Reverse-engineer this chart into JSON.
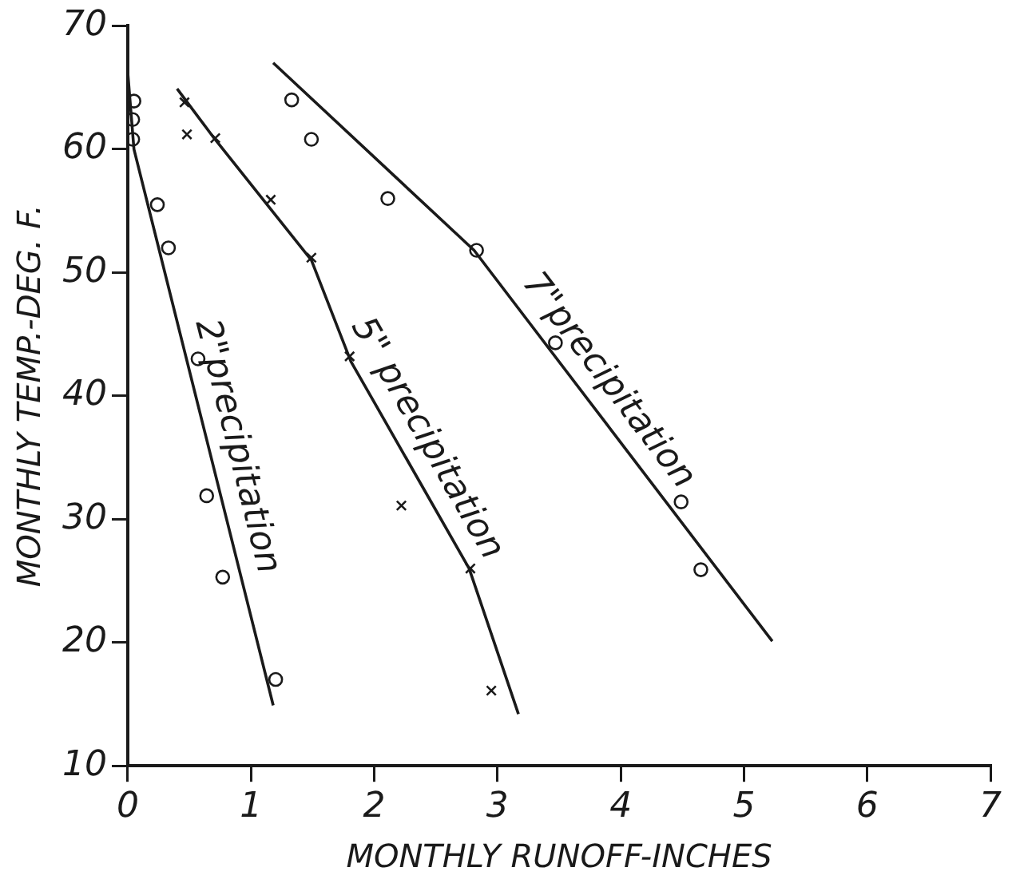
{
  "chart_data": {
    "type": "scatter",
    "xlabel": "MONTHLY RUNOFF-INCHES",
    "ylabel": "MONTHLY TEMP.-DEG. F.",
    "xlim": [
      0,
      7
    ],
    "ylim": [
      10,
      70
    ],
    "xticks": [
      0,
      1,
      2,
      3,
      4,
      5,
      6,
      7
    ],
    "yticks": [
      10,
      20,
      30,
      40,
      50,
      60,
      70
    ],
    "grid": false,
    "legend": false,
    "series": [
      {
        "type": "scatter",
        "marker": "circle",
        "color": "#1a1a1a",
        "x": [
          0.05,
          0.04,
          0.04,
          0.24,
          0.33,
          0.57,
          0.64,
          0.77,
          1.2
        ],
        "values": [
          63.9,
          62.4,
          60.8,
          55.5,
          52.0,
          43.0,
          31.9,
          25.3,
          17.0
        ]
      },
      {
        "type": "line",
        "name": "2\"precipitation",
        "color": "#1a1a1a",
        "marker": "none",
        "x": [
          0.0,
          0.05,
          1.18
        ],
        "values": [
          66.2,
          60.0,
          14.9
        ]
      },
      {
        "type": "scatter",
        "marker": "cross",
        "color": "#1a1a1a",
        "x": [
          0.46,
          0.48,
          0.71,
          1.16,
          1.49,
          1.8,
          2.22,
          2.78,
          2.95
        ],
        "values": [
          63.8,
          61.2,
          60.9,
          55.9,
          51.2,
          43.2,
          31.1,
          26.0,
          16.1
        ]
      },
      {
        "type": "line",
        "name": "5\" precipitation",
        "color": "#1a1a1a",
        "marker": "none",
        "x": [
          0.4,
          0.7,
          1.49,
          1.81,
          2.77,
          3.17
        ],
        "values": [
          64.9,
          60.9,
          51.0,
          42.8,
          26.0,
          14.2
        ]
      },
      {
        "type": "scatter",
        "marker": "circle",
        "color": "#1a1a1a",
        "x": [
          1.33,
          1.49,
          2.11,
          2.83,
          3.47,
          4.49,
          4.65
        ],
        "values": [
          64.0,
          60.8,
          56.0,
          51.8,
          44.3,
          31.4,
          25.9
        ]
      },
      {
        "type": "line",
        "name": "7\"precipitation",
        "color": "#1a1a1a",
        "marker": "none",
        "x": [
          1.18,
          2.81,
          5.23
        ],
        "values": [
          67.0,
          51.8,
          20.1
        ]
      }
    ]
  }
}
